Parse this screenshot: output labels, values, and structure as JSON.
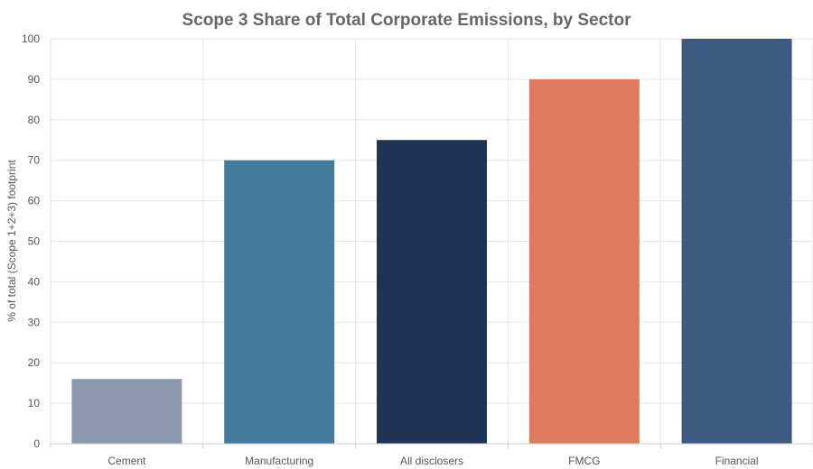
{
  "chart_data": {
    "type": "bar",
    "title": "Scope 3 Share of Total Corporate Emissions, by Sector",
    "xlabel": "",
    "ylabel": "% of total (Scope 1+2+3) footprint",
    "categories": [
      "Cement",
      "Manufacturing",
      "All disclosers",
      "FMCG",
      "Financial"
    ],
    "values": [
      16,
      70,
      75,
      90,
      100
    ],
    "colors": [
      "#8c98ae",
      "#457b9d",
      "#1e3355",
      "#e07a5f",
      "#3d5a80"
    ],
    "ylim": [
      0,
      100
    ],
    "yticks": [
      0,
      10,
      20,
      30,
      40,
      50,
      60,
      70,
      80,
      90,
      100
    ],
    "grid": true,
    "legend": "none"
  }
}
